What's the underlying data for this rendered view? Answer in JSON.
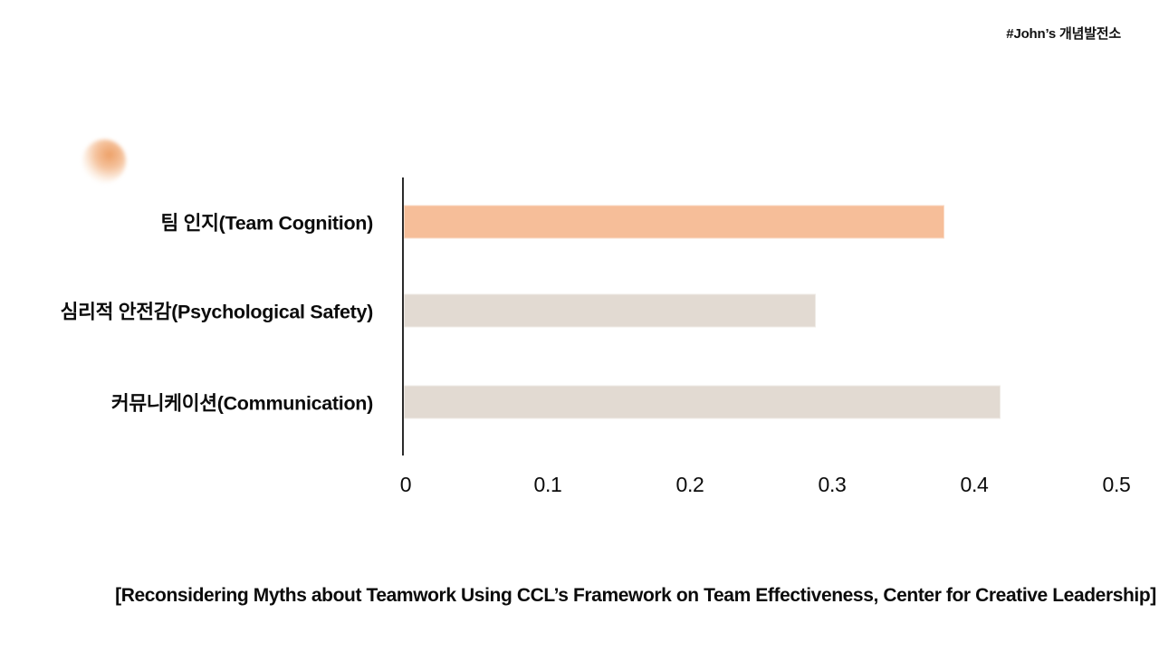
{
  "header": {
    "hashtag": "#John’s 개념발전소"
  },
  "caption": "[Reconsidering Myths about Teamwork Using CCL’s Framework on Team Effectiveness, Center for Creative Leadership]",
  "colors": {
    "accent_orange": "#F6BE99",
    "neutral_beige": "#E2DAD2",
    "axis": "#2B2B2B",
    "text": "#0B0B0B",
    "background": "#FFFFFF",
    "glow_dot_orange": "#EC9B5F"
  },
  "chart_data": {
    "type": "bar",
    "orientation": "horizontal",
    "title": "",
    "xlabel": "",
    "ylabel": "",
    "categories": [
      "팀 인지(Team Cognition)",
      "심리적 안전감(Psychological Safety)",
      "커뮤니케이션(Communication)"
    ],
    "values": [
      0.38,
      0.29,
      0.42
    ],
    "bar_colors": [
      "#F6BE99",
      "#E2DAD2",
      "#E2DAD2"
    ],
    "xlim": [
      0,
      0.5
    ],
    "xticks": [
      0,
      0.1,
      0.2,
      0.3,
      0.4,
      0.5
    ],
    "xtick_labels": [
      "0",
      "0.1",
      "0.2",
      "0.3",
      "0.4",
      "0.5"
    ],
    "grid": false,
    "legend": null
  }
}
